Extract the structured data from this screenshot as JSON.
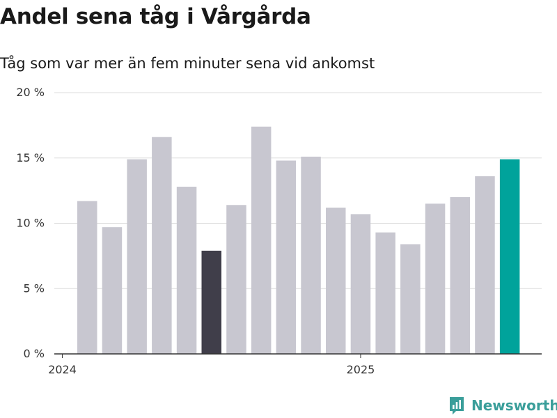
{
  "header": {
    "title": "Andel sena tåg i Vårgårda",
    "subtitle": "Tåg som var mer än fem minuter sena vid ankomst"
  },
  "branding": {
    "name": "Newsworthy",
    "icon": "newsworthy-logo-icon",
    "color": "#3a9e9a"
  },
  "chart_data": {
    "type": "bar",
    "title": "Andel sena tåg i Vårgårda",
    "subtitle": "Tåg som var mer än fem minuter sena vid ankomst",
    "ylim": [
      0,
      20
    ],
    "yticks": [
      0,
      5,
      10,
      15,
      20
    ],
    "ytick_labels": [
      "0 %",
      "5 %",
      "10 %",
      "15 %",
      "20 %"
    ],
    "xtick_labels": [
      {
        "label": "2024",
        "month": "2024-01"
      },
      {
        "label": "2025",
        "month": "2025-01"
      }
    ],
    "grid": true,
    "categories": [
      "2024-02",
      "2024-03",
      "2024-04",
      "2024-05",
      "2024-06",
      "2024-07",
      "2024-08",
      "2024-09",
      "2024-10",
      "2024-11",
      "2024-12",
      "2025-01",
      "2025-02",
      "2025-03",
      "2025-04",
      "2025-05",
      "2025-06",
      "2025-07"
    ],
    "values": [
      11.7,
      9.7,
      14.9,
      16.6,
      12.8,
      7.9,
      11.4,
      17.4,
      14.8,
      15.1,
      11.2,
      10.7,
      9.3,
      8.4,
      11.5,
      12.0,
      13.6,
      14.9
    ],
    "colors": {
      "default": "#c8c7d0",
      "highlight_dark": "#403e4a",
      "highlight_latest": "#00a39b"
    },
    "highlight_dark_index": 5,
    "highlight_latest_index": 17
  }
}
